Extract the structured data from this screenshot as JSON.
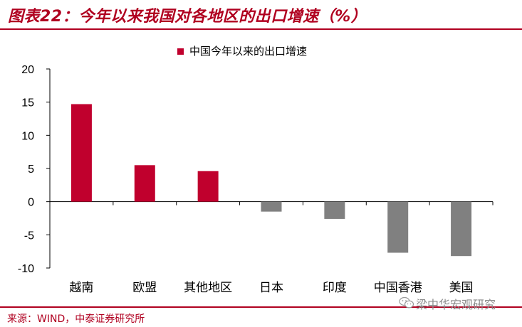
{
  "header": {
    "title": "图表22：今年以来我国对各地区的出口增速（%）"
  },
  "footer": {
    "source": "来源：WIND，中泰证券研究所"
  },
  "watermark": {
    "text": "梁中华宏观研究",
    "icon": "wechat-icon"
  },
  "colors": {
    "brand": "#b00020",
    "positive": "#c0002d",
    "negative": "#808080",
    "axis": "#000000"
  },
  "chart_data": {
    "type": "bar",
    "title": "",
    "xlabel": "",
    "ylabel": "",
    "categories": [
      "越南",
      "欧盟",
      "其他地区",
      "日本",
      "印度",
      "中国香港",
      "美国"
    ],
    "series": [
      {
        "name": "中国今年以来的出口增速",
        "values": [
          14.7,
          5.5,
          4.6,
          -1.5,
          -2.6,
          -7.7,
          -8.2
        ]
      }
    ],
    "ylim": [
      -10,
      20
    ],
    "yticks": [
      20,
      15,
      10,
      5,
      0,
      -5,
      -10
    ],
    "legend_position": "top-center",
    "grid": false
  }
}
